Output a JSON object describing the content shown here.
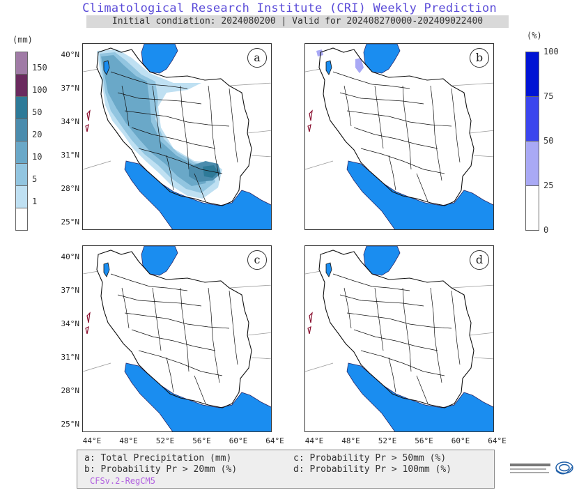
{
  "header": {
    "title": "Climatological Research Institute (CRI) Weekly Prediction",
    "subtitle": "Initial condiation: 2024080200 | Valid for 202408270000-202409022400"
  },
  "colorbar_left": {
    "unit": "(mm)",
    "ticks": [
      "150",
      "100",
      "50",
      "20",
      "10",
      "5",
      "1"
    ],
    "colors": [
      "#a07ba6",
      "#6a2a5e",
      "#2e7a98",
      "#4b8cad",
      "#6aa8c8",
      "#92c5e0",
      "#bfe0f2",
      "#ffffff"
    ]
  },
  "colorbar_right": {
    "unit": "(%)",
    "ticks": [
      "100",
      "75",
      "50",
      "25",
      "0"
    ],
    "colors": [
      "#0014d4",
      "#3b46ee",
      "#a9a9f5",
      "#ffffff"
    ]
  },
  "panels": [
    {
      "id": "a",
      "label": "a"
    },
    {
      "id": "b",
      "label": "b"
    },
    {
      "id": "c",
      "label": "c"
    },
    {
      "id": "d",
      "label": "d"
    }
  ],
  "axes": {
    "lat_labels": [
      "40°N",
      "37°N",
      "34°N",
      "31°N",
      "28°N",
      "25°N"
    ],
    "lon_labels": [
      "44°E",
      "48°E",
      "52°E",
      "56°E",
      "60°E",
      "64°E"
    ]
  },
  "legend": {
    "a": "a: Total Precipitation (mm)",
    "b": "b: Probability Pr > 20mm (%)",
    "c": "c: Probability Pr > 50mm (%)",
    "d": "d: Probability Pr > 100mm (%)",
    "model": "CFSv.2-RegCM5"
  },
  "colors": {
    "water": "#1a8df0",
    "title": "#5a4bd8"
  }
}
